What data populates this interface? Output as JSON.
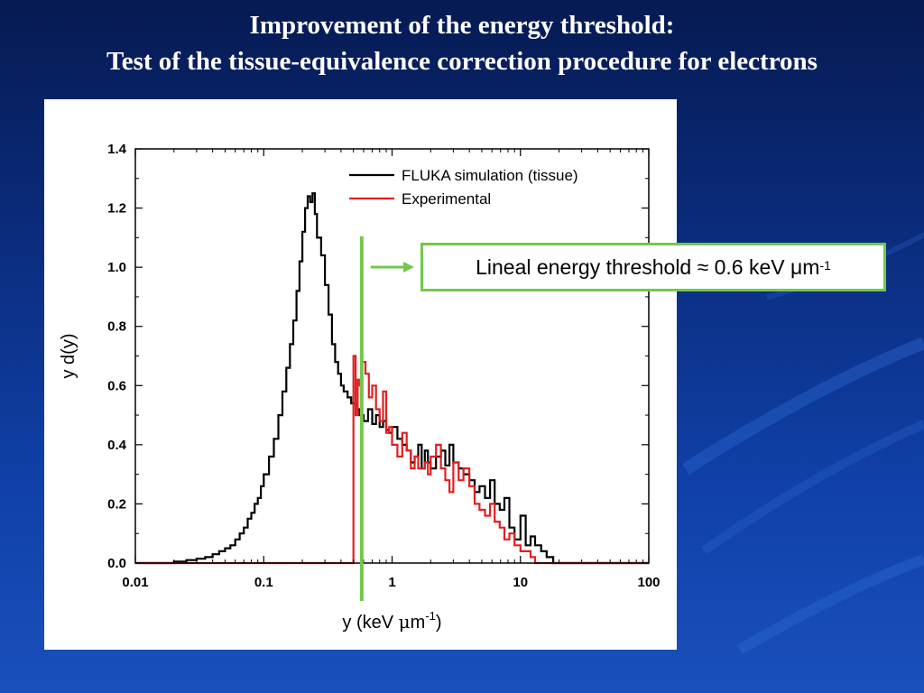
{
  "slide": {
    "title_line1": "Improvement of the energy threshold:",
    "title_line2": "Test of the tissue-equivalence correction procedure for electrons"
  },
  "callout": {
    "text": "Lineal energy threshold ≈ 0.6 keV μm",
    "superscript": "-1"
  },
  "colors": {
    "background": "#0a2a78",
    "simulation": "#000000",
    "experimental": "#e02020",
    "threshold_line": "#72c84a"
  },
  "chart_data": {
    "type": "line",
    "x_scale": "log",
    "xlim": [
      0.01,
      100
    ],
    "ylim": [
      0,
      1.4
    ],
    "x_ticks": [
      0.01,
      0.1,
      1,
      10,
      100
    ],
    "x_tick_labels": [
      "0.01",
      "0.1",
      "1",
      "10",
      "100"
    ],
    "y_ticks": [
      0,
      0.2,
      0.4,
      0.6,
      0.8,
      1.0,
      1.2,
      1.4
    ],
    "y_tick_labels": [
      "0.0",
      "0.2",
      "0.4",
      "0.6",
      "0.8",
      "1.0",
      "1.2",
      "1.4"
    ],
    "xlabel_base": "y (keV ",
    "xlabel_mu": "μ",
    "xlabel_unit": "m",
    "xlabel_sup": "-1",
    "xlabel_close": ")",
    "ylabel": "y d(y)",
    "legend_position": "top-right",
    "threshold_x": 0.58,
    "series": [
      {
        "name": "FLUKA simulation (tissue)",
        "color": "#000000",
        "style": "step",
        "x": [
          0.01,
          0.02,
          0.025,
          0.03,
          0.035,
          0.04,
          0.045,
          0.05,
          0.055,
          0.06,
          0.065,
          0.07,
          0.075,
          0.08,
          0.085,
          0.09,
          0.095,
          0.1,
          0.11,
          0.12,
          0.13,
          0.14,
          0.15,
          0.16,
          0.17,
          0.18,
          0.19,
          0.2,
          0.21,
          0.22,
          0.23,
          0.24,
          0.25,
          0.26,
          0.28,
          0.3,
          0.32,
          0.34,
          0.36,
          0.38,
          0.4,
          0.42,
          0.45,
          0.48,
          0.52,
          0.56,
          0.6,
          0.65,
          0.7,
          0.75,
          0.8,
          0.85,
          0.9,
          0.95,
          1.0,
          1.1,
          1.2,
          1.3,
          1.4,
          1.5,
          1.6,
          1.7,
          1.8,
          1.9,
          2.0,
          2.2,
          2.4,
          2.6,
          2.8,
          3.0,
          3.3,
          3.6,
          4.0,
          4.4,
          4.8,
          5.3,
          5.8,
          6.3,
          6.9,
          7.5,
          8.2,
          9.0,
          10.0,
          11.0,
          12.0,
          13.0,
          14.5,
          16.0,
          18.0,
          100
        ],
        "y": [
          0.0,
          0.005,
          0.01,
          0.015,
          0.02,
          0.03,
          0.04,
          0.05,
          0.06,
          0.08,
          0.1,
          0.12,
          0.15,
          0.17,
          0.2,
          0.22,
          0.26,
          0.3,
          0.36,
          0.42,
          0.5,
          0.58,
          0.66,
          0.74,
          0.82,
          0.92,
          1.02,
          1.12,
          1.2,
          1.24,
          1.22,
          1.25,
          1.18,
          1.1,
          1.04,
          0.94,
          0.84,
          0.74,
          0.68,
          0.64,
          0.6,
          0.58,
          0.56,
          0.54,
          0.52,
          0.5,
          0.48,
          0.52,
          0.47,
          0.5,
          0.46,
          0.48,
          0.45,
          0.44,
          0.46,
          0.42,
          0.4,
          0.38,
          0.34,
          0.36,
          0.4,
          0.32,
          0.38,
          0.34,
          0.32,
          0.36,
          0.38,
          0.33,
          0.4,
          0.34,
          0.32,
          0.3,
          0.28,
          0.24,
          0.26,
          0.22,
          0.28,
          0.2,
          0.18,
          0.22,
          0.12,
          0.08,
          0.16,
          0.06,
          0.09,
          0.06,
          0.04,
          0.02,
          0.0,
          0.0
        ]
      },
      {
        "name": "Experimental",
        "color": "#e02020",
        "style": "step",
        "x": [
          0.01,
          0.5,
          0.52,
          0.54,
          0.56,
          0.58,
          0.62,
          0.66,
          0.7,
          0.75,
          0.8,
          0.85,
          0.9,
          0.95,
          1.0,
          1.1,
          1.2,
          1.3,
          1.4,
          1.5,
          1.6,
          1.7,
          1.8,
          1.9,
          2.0,
          2.2,
          2.4,
          2.6,
          2.8,
          3.0,
          3.3,
          3.6,
          4.0,
          4.4,
          4.8,
          5.3,
          5.8,
          6.3,
          6.9,
          7.5,
          8.2,
          9.0,
          10.0,
          11.0,
          12.0,
          13.0,
          14.5,
          100
        ],
        "y": [
          0.0,
          0.7,
          0.5,
          0.62,
          0.6,
          0.68,
          0.64,
          0.56,
          0.6,
          0.52,
          0.48,
          0.58,
          0.44,
          0.46,
          0.4,
          0.36,
          0.44,
          0.38,
          0.32,
          0.36,
          0.32,
          0.32,
          0.34,
          0.3,
          0.36,
          0.4,
          0.32,
          0.28,
          0.24,
          0.34,
          0.28,
          0.32,
          0.26,
          0.2,
          0.18,
          0.16,
          0.2,
          0.14,
          0.12,
          0.08,
          0.1,
          0.06,
          0.04,
          0.04,
          0.02,
          0.0,
          0.0,
          0.0
        ]
      }
    ]
  }
}
